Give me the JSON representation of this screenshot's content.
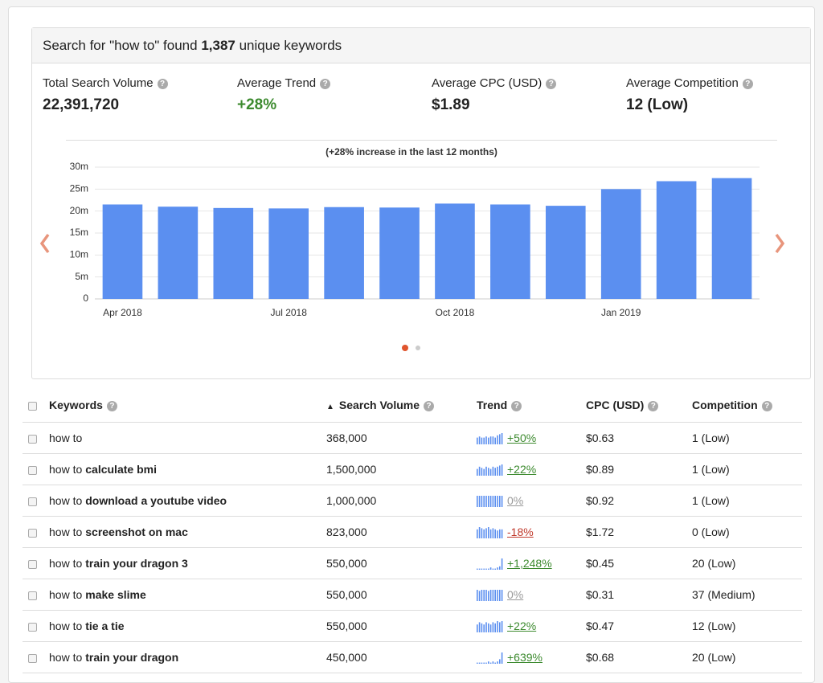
{
  "header": {
    "prefix": "Search for \"how to\" found",
    "count": "1,387",
    "suffix": "unique keywords"
  },
  "stats": [
    {
      "label": "Total Search Volume",
      "value": "22,391,720"
    },
    {
      "label": "Average Trend",
      "value": "+28%"
    },
    {
      "label": "Average CPC (USD)",
      "value": "$1.89"
    },
    {
      "label": "Average Competition",
      "value": "12 (Low)"
    }
  ],
  "chart_data": {
    "type": "bar",
    "subtitle": "(+28% increase in the last 12 months)",
    "categories": [
      "Apr 2018",
      null,
      null,
      "Jul 2018",
      null,
      null,
      "Oct 2018",
      null,
      null,
      "Jan 2019",
      null,
      null
    ],
    "values": [
      21500000,
      21000000,
      20700000,
      20600000,
      20900000,
      20800000,
      21700000,
      21500000,
      21200000,
      25000000,
      26800000,
      27500000
    ],
    "color": "#5b8ff0",
    "ylim": [
      0,
      30000000
    ],
    "yticks": [
      0,
      {
        "value": 5000000,
        "label": "5m"
      },
      {
        "value": 10000000,
        "label": "10m"
      },
      {
        "value": 15000000,
        "label": "15m"
      },
      {
        "value": 20000000,
        "label": "20m"
      },
      {
        "value": 25000000,
        "label": "25m"
      },
      {
        "value": 30000000,
        "label": "30m"
      }
    ],
    "grid": true
  },
  "table": {
    "columns": [
      "Keywords",
      "Search Volume",
      "Trend",
      "CPC (USD)",
      "Competition"
    ],
    "rows": [
      {
        "keyword": "how to",
        "volume": "368,000",
        "spark": [
          6,
          7,
          6,
          6,
          7,
          6,
          7,
          7,
          6,
          8,
          9,
          10
        ],
        "trend": "+50%",
        "cpc": "$0.63",
        "competition": "1 (Low)"
      },
      {
        "keyword": "how to",
        "keyword_bold": "calculate bmi",
        "volume": "1,500,000",
        "spark": [
          6,
          8,
          7,
          6,
          8,
          7,
          6,
          8,
          7,
          8,
          9,
          10
        ],
        "trend": "+22%",
        "cpc": "$0.89",
        "competition": "1 (Low)"
      },
      {
        "keyword": "how to",
        "keyword_bold": "download a youtube video",
        "volume": "1,000,000",
        "spark": [
          10,
          10,
          10,
          10,
          10,
          10,
          10,
          10,
          10,
          10,
          10,
          10
        ],
        "trend": "0%",
        "cpc": "$0.92",
        "competition": "1 (Low)"
      },
      {
        "keyword": "how to",
        "keyword_bold": "screenshot on mac",
        "volume": "823,000",
        "spark": [
          8,
          10,
          9,
          8,
          9,
          10,
          8,
          9,
          8,
          7,
          8,
          8
        ],
        "trend": "-18%",
        "cpc": "$1.72",
        "competition": "0 (Low)"
      },
      {
        "keyword": "how to",
        "keyword_bold": "train your dragon 3",
        "volume": "550,000",
        "spark": [
          1,
          1,
          1,
          1,
          1,
          1,
          2,
          1,
          1,
          2,
          3,
          10
        ],
        "trend": "+1,248%",
        "cpc": "$0.45",
        "competition": "20 (Low)"
      },
      {
        "keyword": "how to",
        "keyword_bold": "make slime",
        "volume": "550,000",
        "spark": [
          10,
          9,
          10,
          10,
          10,
          9,
          10,
          10,
          10,
          10,
          10,
          10
        ],
        "trend": "0%",
        "cpc": "$0.31",
        "competition": "37 (Medium)"
      },
      {
        "keyword": "how to",
        "keyword_bold": "tie a tie",
        "volume": "550,000",
        "spark": [
          7,
          9,
          8,
          7,
          9,
          8,
          7,
          9,
          8,
          10,
          9,
          10
        ],
        "trend": "+22%",
        "cpc": "$0.47",
        "competition": "12 (Low)"
      },
      {
        "keyword": "how to",
        "keyword_bold": "train your dragon",
        "volume": "450,000",
        "spark": [
          1,
          1,
          1,
          1,
          1,
          2,
          1,
          2,
          1,
          2,
          4,
          10
        ],
        "trend": "+639%",
        "cpc": "$0.68",
        "competition": "20 (Low)"
      }
    ]
  }
}
